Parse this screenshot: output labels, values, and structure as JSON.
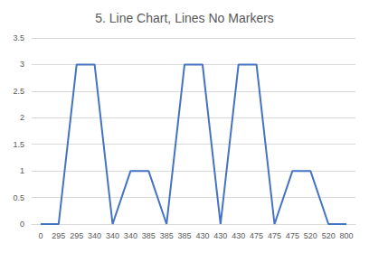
{
  "chart_data": {
    "type": "line",
    "title": "5. Line Chart, Lines No Markers",
    "categories": [
      "0",
      "295",
      "295",
      "340",
      "340",
      "340",
      "385",
      "385",
      "385",
      "430",
      "430",
      "430",
      "475",
      "475",
      "475",
      "520",
      "520",
      "800"
    ],
    "values": [
      0,
      0,
      3,
      3,
      0,
      1,
      1,
      0,
      3,
      3,
      0,
      3,
      3,
      0,
      1,
      1,
      0,
      0
    ],
    "color": "#4472c4",
    "ylim": [
      0,
      3.5
    ],
    "yticks": [
      0,
      0.5,
      1,
      1.5,
      2,
      2.5,
      3,
      3.5
    ],
    "grid": true,
    "marker": "none"
  }
}
